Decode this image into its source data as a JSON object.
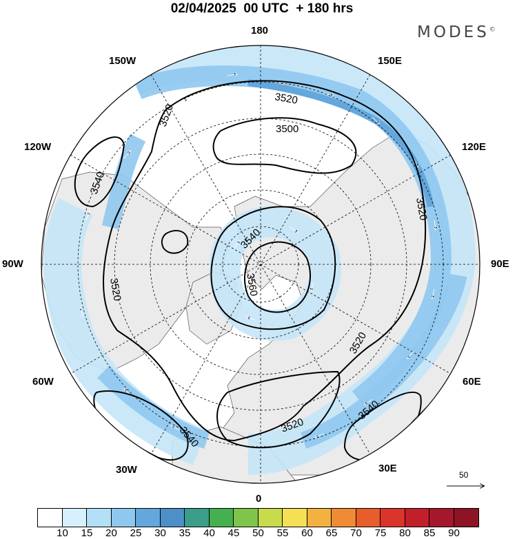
{
  "header": {
    "title": "02/04/2025  00 UTC  + 180 hrs",
    "brand": "MODES",
    "brand_mark": "©"
  },
  "map": {
    "projection": "north-polar-stereographic",
    "longitude_labels": [
      "180",
      "150E",
      "120E",
      "90E",
      "60E",
      "30E",
      "0",
      "30W",
      "60W",
      "90W",
      "120W",
      "150W"
    ],
    "contour_labels": [
      "3500",
      "3520",
      "3540",
      "3560"
    ],
    "reference_vector_label": "50"
  },
  "colorbar": {
    "tick_labels": [
      "10",
      "15",
      "20",
      "25",
      "30",
      "35",
      "40",
      "45",
      "50",
      "55",
      "60",
      "65",
      "70",
      "75",
      "80",
      "85",
      "90"
    ],
    "colors": [
      "#ffffff",
      "#d6f1fd",
      "#b3e0f6",
      "#8fc8ee",
      "#63a7dc",
      "#4d8fc7",
      "#3a9e8a",
      "#44b04f",
      "#7fc44b",
      "#c6dc4b",
      "#f5df55",
      "#f3b240",
      "#ef8a35",
      "#e75d2b",
      "#d9352a",
      "#c31f2b",
      "#a5182b",
      "#8c1425"
    ]
  },
  "colors": {
    "land": "#ebebeb",
    "coast": "#555555",
    "contour": "#000000",
    "jet_light": "#c5e6f8",
    "jet_mid": "#8fc8ee",
    "jet_core": "#63a7dc"
  }
}
